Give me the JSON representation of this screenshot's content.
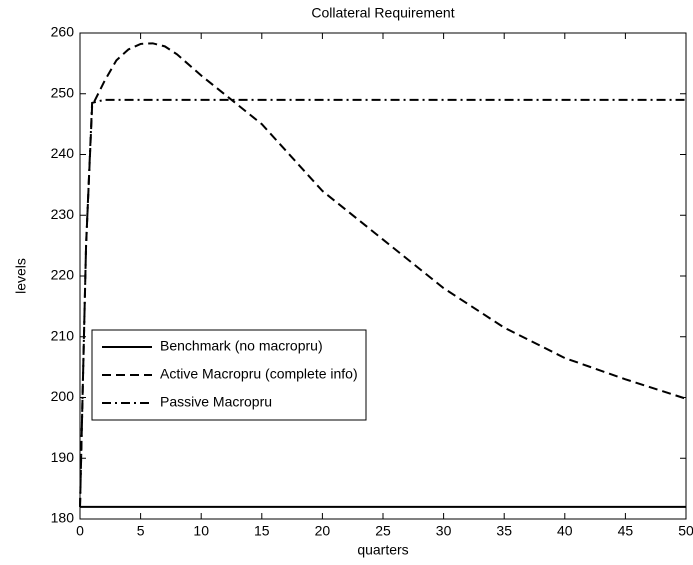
{
  "chart_data": {
    "type": "line",
    "title": "Collateral Requirement",
    "xlabel": "quarters",
    "ylabel": "levels",
    "x": [
      0,
      0.5,
      1,
      2,
      3,
      4,
      5,
      6,
      7,
      8,
      10,
      12.5,
      15,
      20,
      25,
      30,
      35,
      40,
      45,
      50
    ],
    "series": [
      {
        "name": "Benchmark (no macropru)",
        "color": "#000000",
        "dash": "solid",
        "values": [
          182,
          182,
          182,
          182,
          182,
          182,
          182,
          182,
          182,
          182,
          182,
          182,
          182,
          182,
          182,
          182,
          182,
          182,
          182,
          182
        ]
      },
      {
        "name": "Active Macropru (complete info)",
        "color": "#000000",
        "dash": "dashed",
        "values": [
          182,
          225,
          248,
          252,
          255.5,
          257.3,
          258.2,
          258.3,
          257.8,
          256.5,
          253,
          249,
          245,
          234,
          226,
          218,
          211.5,
          206.5,
          203,
          199.8
        ]
      },
      {
        "name": "Passive Macropru",
        "color": "#000000",
        "dash": "dashdot",
        "values": [
          182,
          225,
          248.5,
          249,
          249,
          249,
          249,
          249,
          249,
          249,
          249,
          249,
          249,
          249,
          249,
          249,
          249,
          249,
          249,
          249
        ]
      }
    ],
    "xlim": [
      0,
      50
    ],
    "xticks": [
      0,
      5,
      10,
      15,
      20,
      25,
      30,
      35,
      40,
      45,
      50
    ],
    "ylim": [
      180,
      260
    ],
    "yticks": [
      180,
      190,
      200,
      210,
      220,
      230,
      240,
      250,
      260
    ],
    "grid": false,
    "legend": "lower left"
  }
}
